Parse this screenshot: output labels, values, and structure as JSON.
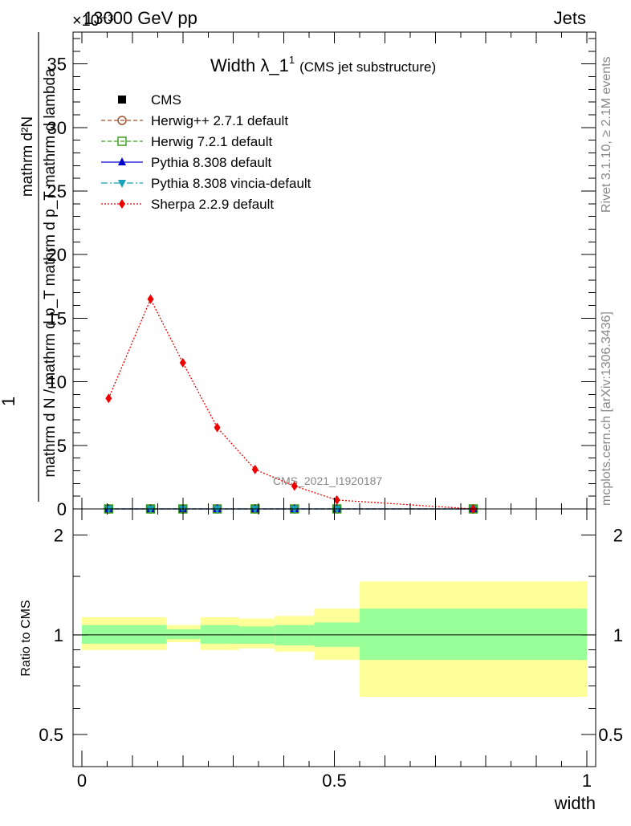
{
  "header": {
    "left_label": "13000 GeV pp",
    "right_label": "Jets",
    "exponent_label": "×10⁻³"
  },
  "side_labels": {
    "rivet": "Rivet 3.1.10, ≥ 2.1M events",
    "mcplots": "mcplots.cern.ch [arXiv:1306.3436]"
  },
  "watermark": "CMS_2021_I1920187",
  "colors": {
    "herwigpp": "#a0522d",
    "herwig7": "#3a9d23",
    "pythia": "#0000cc",
    "vincia": "#17a2b8",
    "sherpa": "#ee0000",
    "band_inner": "#99ff99",
    "band_outer": "#ffff99"
  },
  "chart_data": [
    {
      "type": "line",
      "title": "Width λ_1",
      "title_superscript": "1",
      "subtitle": "(CMS jet substructure)",
      "ylabel_top": "1",
      "ylabel_num": "mathrm d²N",
      "ylabel_den": "mathrm d N / mathrm d p_T mathrm d p_T mathrm d lambda",
      "ylim": [
        0,
        37.5
      ],
      "y_unit_exponent": -3,
      "yticks": [
        0,
        5,
        10,
        15,
        20,
        25,
        30,
        35
      ],
      "xlim": [
        0,
        1
      ],
      "legend_position": "top-left",
      "x": [
        0.053,
        0.136,
        0.2,
        0.268,
        0.343,
        0.421,
        0.505,
        0.775
      ],
      "series": [
        {
          "name": "CMS",
          "marker": "square-filled",
          "values": [
            0,
            0,
            0,
            0,
            0,
            0,
            0,
            0
          ]
        },
        {
          "name": "Herwig++ 2.7.1 default",
          "marker": "circle-open",
          "line": "dashed",
          "values": [
            0,
            0,
            0,
            0,
            0,
            0,
            0,
            0
          ]
        },
        {
          "name": "Herwig 7.2.1 default",
          "marker": "square-open",
          "line": "dashed",
          "values": [
            0,
            0,
            0,
            0,
            0,
            0,
            0,
            0
          ]
        },
        {
          "name": "Pythia 8.308 default",
          "marker": "triangle-up",
          "line": "solid",
          "values": [
            0,
            0,
            0,
            0,
            0,
            0,
            0,
            0
          ]
        },
        {
          "name": "Pythia 8.308 vincia-default",
          "marker": "triangle-down",
          "line": "dashdot",
          "values": [
            0,
            0,
            0,
            0,
            0,
            0,
            0,
            0
          ]
        },
        {
          "name": "Sherpa 2.2.9 default",
          "marker": "diamond",
          "line": "dotted",
          "values": [
            8.7,
            16.5,
            11.5,
            6.4,
            3.1,
            1.8,
            0.7,
            0.0
          ]
        }
      ]
    },
    {
      "type": "area",
      "ylabel": "Ratio to CMS",
      "xlabel": "width",
      "ylim": [
        0.4,
        2.4
      ],
      "log_y": true,
      "yticks": [
        0.5,
        1,
        2
      ],
      "xlim": [
        0,
        1
      ],
      "xticks": [
        0,
        0.5,
        1
      ],
      "bins": [
        {
          "x": [
            0.0,
            0.168
          ],
          "inner": [
            0.94,
            1.07
          ],
          "outer": [
            0.9,
            1.13
          ]
        },
        {
          "x": [
            0.168,
            0.235
          ],
          "inner": [
            0.97,
            1.04
          ],
          "outer": [
            0.95,
            1.07
          ]
        },
        {
          "x": [
            0.235,
            0.31
          ],
          "inner": [
            0.94,
            1.07
          ],
          "outer": [
            0.9,
            1.13
          ]
        },
        {
          "x": [
            0.31,
            0.382
          ],
          "inner": [
            0.94,
            1.06
          ],
          "outer": [
            0.91,
            1.12
          ]
        },
        {
          "x": [
            0.382,
            0.46
          ],
          "inner": [
            0.93,
            1.07
          ],
          "outer": [
            0.89,
            1.14
          ]
        },
        {
          "x": [
            0.46,
            0.55
          ],
          "inner": [
            0.92,
            1.09
          ],
          "outer": [
            0.84,
            1.2
          ]
        },
        {
          "x": [
            0.55,
            1.0
          ],
          "inner": [
            0.84,
            1.2
          ],
          "outer": [
            0.65,
            1.45
          ]
        }
      ],
      "reference_line": 1
    }
  ]
}
